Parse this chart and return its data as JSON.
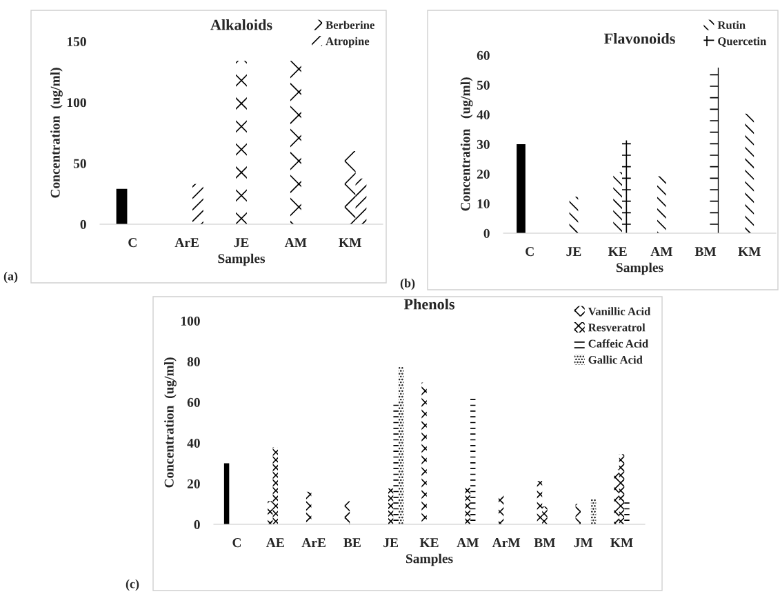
{
  "chart_data": [
    {
      "type": "bar",
      "title": "Alkaloids",
      "xlabel": "Samples",
      "ylabel": "Concentration  (ug/ml)",
      "categories": [
        "C",
        "ArE",
        "JE",
        "AM",
        "KM"
      ],
      "series": [
        {
          "color": "#000000",
          "values": [
            29,
            null,
            null,
            null,
            null
          ]
        },
        {
          "name": "Berberine",
          "color": "#000000",
          "values": [
            null,
            null,
            134,
            134,
            60
          ]
        },
        {
          "name": "Atropine",
          "color": "#000000",
          "values": [
            null,
            33,
            null,
            null,
            37.5
          ]
        }
      ],
      "ylim": [
        0,
        150
      ],
      "yticks": [
        0,
        50,
        100,
        150
      ],
      "grid": false,
      "legend": "top right",
      "annotations": [
        "(a)"
      ]
    },
    {
      "type": "bar",
      "title": "Flavonoids",
      "xlabel": "Samples",
      "ylabel": "Concentration   (ug/ml)",
      "categories": [
        "C",
        "JE",
        "KE",
        "AM",
        "BM",
        "KM"
      ],
      "series": [
        {
          "color": "#000000",
          "values": [
            30,
            null,
            null,
            null,
            null,
            null
          ]
        },
        {
          "name": "Rutin",
          "color": "#000000",
          "values": [
            null,
            12.3,
            20.6,
            19.2,
            null,
            40.3
          ]
        },
        {
          "name": "Quercetin",
          "color": "#000000",
          "values": [
            null,
            null,
            31.3,
            null,
            55.8,
            null
          ]
        }
      ],
      "ylim": [
        0,
        60
      ],
      "yticks": [
        0,
        10,
        20,
        30,
        40,
        50,
        60
      ],
      "grid": false,
      "legend": "top right",
      "annotations": [
        "(b)"
      ]
    },
    {
      "type": "bar",
      "title": "Phenols",
      "xlabel": "Samples",
      "ylabel": "Concentration  (ug/ml)",
      "categories": [
        "C",
        "AE",
        "ArE",
        "BE",
        "JE",
        "KE",
        "AM",
        "ArM",
        "BM",
        "JM",
        "KM"
      ],
      "series": [
        {
          "color": "#000000",
          "values": [
            30,
            null,
            null,
            null,
            null,
            null,
            null,
            null,
            null,
            null,
            null
          ]
        },
        {
          "name": "Vanillic Acid",
          "color": "#000000",
          "values": [
            null,
            11.4,
            16,
            11.4,
            null,
            69.7,
            null,
            14.6,
            21.3,
            10,
            27
          ]
        },
        {
          "name": "Resveratrol",
          "color": "#000000",
          "values": [
            null,
            37.8,
            null,
            null,
            17.6,
            null,
            18,
            null,
            8.7,
            null,
            34.5
          ]
        },
        {
          "name": "Caffeic Acid",
          "color": "#000000",
          "values": [
            null,
            null,
            null,
            null,
            60,
            null,
            61.7,
            null,
            null,
            null,
            12.6
          ]
        },
        {
          "name": "Gallic Acid",
          "color": "#000000",
          "values": [
            null,
            null,
            null,
            null,
            77.5,
            null,
            null,
            null,
            null,
            12.3,
            null
          ]
        }
      ],
      "ylim": [
        0,
        100
      ],
      "yticks": [
        0,
        20,
        40,
        60,
        80,
        100
      ],
      "grid": false,
      "legend": "top right",
      "annotations": [
        "(c)"
      ]
    }
  ]
}
